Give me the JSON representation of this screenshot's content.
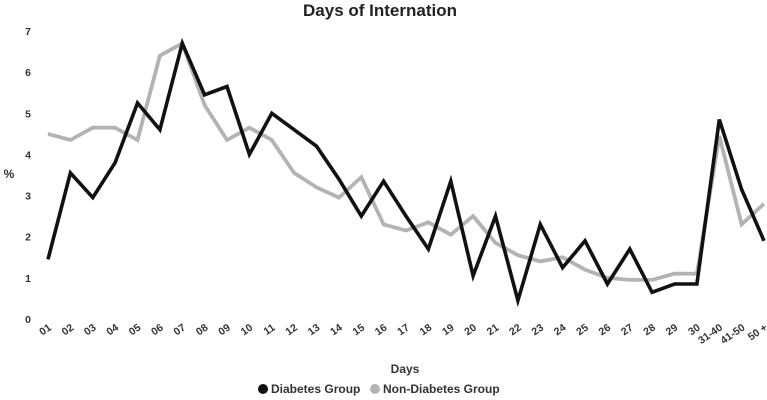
{
  "chart_data": {
    "type": "line",
    "title": "Days of Internation",
    "xlabel": "Days",
    "ylabel": "%",
    "ylim": [
      0,
      7
    ],
    "yticks": [
      "0",
      "1",
      "2",
      "3",
      "4",
      "5",
      "6",
      "7"
    ],
    "grid": false,
    "legend_position": "bottom",
    "categories": [
      "01",
      "02",
      "03",
      "04",
      "05",
      "06",
      "07",
      "08",
      "09",
      "10",
      "11",
      "12",
      "13",
      "14",
      "15",
      "16",
      "17",
      "18",
      "19",
      "20",
      "21",
      "22",
      "23",
      "24",
      "25",
      "26",
      "27",
      "28",
      "29",
      "30",
      "31-40",
      "41-50",
      "50 +"
    ],
    "series": [
      {
        "name": "Diabetes Group",
        "color": "#111111",
        "values": [
          1.45,
          3.55,
          2.95,
          3.8,
          5.25,
          4.6,
          6.7,
          5.45,
          5.65,
          4.0,
          5.0,
          4.6,
          4.2,
          3.4,
          2.5,
          3.35,
          2.5,
          1.7,
          3.35,
          1.05,
          2.5,
          0.45,
          2.3,
          1.25,
          1.9,
          0.85,
          1.7,
          0.65,
          0.85,
          0.85,
          4.85,
          3.15,
          1.9
        ]
      },
      {
        "name": "Non-Diabetes Group",
        "color": "#b3b3b3",
        "values": [
          4.5,
          4.35,
          4.65,
          4.65,
          4.35,
          6.4,
          6.7,
          5.2,
          4.35,
          4.65,
          4.35,
          3.55,
          3.2,
          2.95,
          3.45,
          2.3,
          2.15,
          2.35,
          2.05,
          2.5,
          1.85,
          1.55,
          1.4,
          1.5,
          1.2,
          1.0,
          0.95,
          0.95,
          1.1,
          1.1,
          4.45,
          2.3,
          2.8
        ]
      }
    ]
  }
}
